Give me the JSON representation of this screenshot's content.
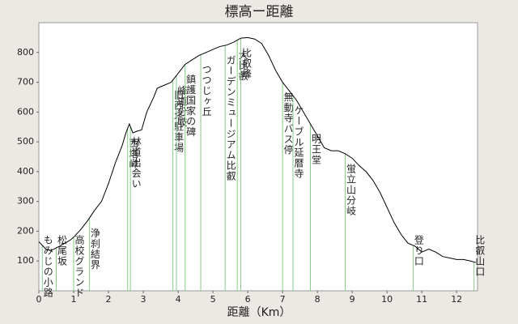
{
  "chart_data": {
    "type": "line",
    "title": "標高ー距離",
    "xlabel": "距離（Km）",
    "color": "#000000",
    "marker_color": "#88cc88",
    "x": [
      0,
      0.2,
      0.35,
      0.6,
      0.9,
      1.0,
      1.2,
      1.4,
      1.6,
      1.8,
      2.0,
      2.2,
      2.4,
      2.5,
      2.6,
      2.7,
      2.8,
      2.95,
      3.1,
      3.3,
      3.4,
      3.6,
      3.8,
      4.0,
      4.2,
      4.4,
      4.6,
      4.8,
      5.0,
      5.2,
      5.4,
      5.6,
      5.8,
      6.0,
      6.2,
      6.4,
      6.6,
      6.8,
      7.0,
      7.2,
      7.4,
      7.6,
      7.8,
      8.0,
      8.2,
      8.4,
      8.6,
      8.8,
      9.0,
      9.2,
      9.4,
      9.6,
      9.8,
      10.0,
      10.2,
      10.4,
      10.6,
      10.8,
      11.0,
      11.2,
      11.4,
      11.6,
      11.8,
      12.0,
      12.2,
      12.4,
      12.55
    ],
    "values": [
      165,
      140,
      135,
      150,
      170,
      180,
      205,
      235,
      270,
      300,
      360,
      430,
      490,
      530,
      560,
      530,
      535,
      540,
      600,
      650,
      680,
      690,
      700,
      730,
      760,
      775,
      790,
      800,
      810,
      820,
      825,
      835,
      848,
      850,
      845,
      830,
      790,
      740,
      700,
      670,
      640,
      600,
      560,
      520,
      480,
      470,
      470,
      460,
      445,
      420,
      400,
      370,
      330,
      280,
      230,
      190,
      160,
      150,
      130,
      140,
      130,
      115,
      110,
      105,
      105,
      100,
      95
    ],
    "landmarks": [
      {
        "x": 0.1,
        "label": "もみじの小路"
      },
      {
        "x": 0.5,
        "label": "松尾坂"
      },
      {
        "x": 1.0,
        "label": "高校グランド"
      },
      {
        "x": 1.45,
        "label": "浄刹結界"
      },
      {
        "x": 2.55,
        "label": "西塔峠"
      },
      {
        "x": 2.63,
        "label": "林道出会い"
      },
      {
        "x": 3.85,
        "label": "旧西塔駐車場"
      },
      {
        "x": 3.95,
        "label": "峰道分岐"
      },
      {
        "x": 4.2,
        "label": "鎮護国家の碑"
      },
      {
        "x": 4.65,
        "label": "つつじヶ丘"
      },
      {
        "x": 5.35,
        "label": "ガーデンミュージアム比叡"
      },
      {
        "x": 5.7,
        "label": "大比叡"
      },
      {
        "x": 5.8,
        "label": "比叡峰"
      },
      {
        "x": 7.0,
        "label": "無動寺バス停"
      },
      {
        "x": 7.3,
        "label": "ケーブル延暦寺"
      },
      {
        "x": 7.8,
        "label": "明王堂"
      },
      {
        "x": 8.8,
        "label": "蛍立山分岐"
      },
      {
        "x": 10.75,
        "label": "登り口"
      },
      {
        "x": 12.5,
        "label": "比叡山口"
      }
    ],
    "xlim": [
      0,
      12.6
    ],
    "ylim": [
      0,
      900
    ],
    "xticks": [
      0,
      1,
      2,
      3,
      4,
      5,
      6,
      7,
      8,
      9,
      10,
      11,
      12
    ],
    "yticks": [
      100,
      200,
      300,
      400,
      500,
      600,
      700,
      800
    ]
  }
}
